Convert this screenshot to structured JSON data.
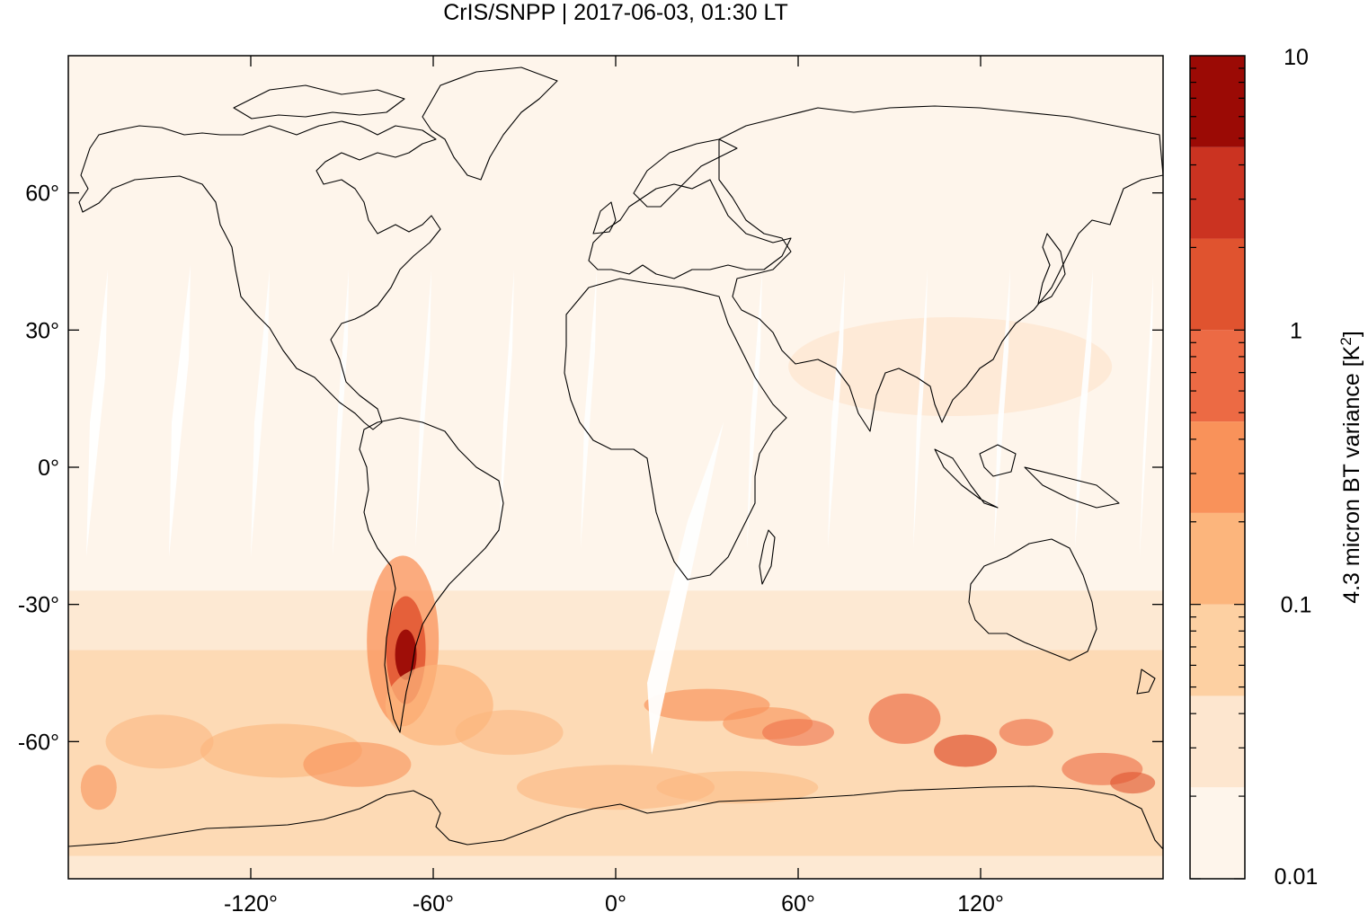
{
  "title": "CrIS/SNPP | 2017-06-03, 01:30 LT",
  "map": {
    "lon_range": [
      -180,
      180
    ],
    "lat_range": [
      -90,
      90
    ],
    "x_ticks": [
      {
        "lon": -120,
        "label": "-120°"
      },
      {
        "lon": -60,
        "label": "-60°"
      },
      {
        "lon": 0,
        "label": "0°"
      },
      {
        "lon": 60,
        "label": "60°"
      },
      {
        "lon": 120,
        "label": "120°"
      }
    ],
    "y_ticks": [
      {
        "lat": 60,
        "label": "60°"
      },
      {
        "lat": 30,
        "label": "30°"
      },
      {
        "lat": 0,
        "label": "0°"
      },
      {
        "lat": -30,
        "label": "-30°"
      },
      {
        "lat": -60,
        "label": "-60°"
      }
    ],
    "coastline_color": "#000000"
  },
  "colorbar": {
    "label": "4.3 micron BT variance [K",
    "label_sup": "2",
    "label_end": "]",
    "scale": "log",
    "range": [
      0.01,
      10
    ],
    "tick_labels": [
      {
        "value": 10,
        "label": "10"
      },
      {
        "value": 1,
        "label": "1"
      },
      {
        "value": 0.1,
        "label": "0.1"
      },
      {
        "value": 0.01,
        "label": "0.01"
      }
    ],
    "levels": [
      "#fff5eb",
      "#fee6ce",
      "#fdd0a2",
      "#fdae6b",
      "#fd8d3c",
      "#f16913",
      "#e6550d",
      "#d94801",
      "#a63603"
    ],
    "colors": [
      "#fef5eb",
      "#fde6cf",
      "#fdd0a2",
      "#fcb57c",
      "#f9925a",
      "#ec6a44",
      "#e0532f",
      "#cb3321",
      "#9b0a05"
    ]
  }
}
